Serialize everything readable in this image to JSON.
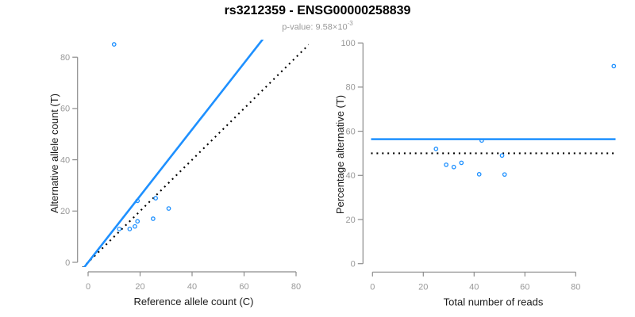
{
  "header": {
    "title": "rs3212359 - ENSG00000258839",
    "subtitle_prefix": "p-value: 9.58×10",
    "subtitle_exponent": "-3"
  },
  "colors": {
    "accent_blue": "#1E90FF",
    "reference_black": "#000000",
    "axis_gray": "#8c8c8c",
    "tick_label_gray": "#999999",
    "axis_label_black": "#1a1a1a"
  },
  "chart_data": [
    {
      "type": "scatter",
      "xlabel": "Reference allele count (C)",
      "ylabel": "Alternative allele count (T)",
      "xticks": [
        0,
        20,
        40,
        60,
        80
      ],
      "yticks": [
        0,
        20,
        40,
        60,
        80
      ],
      "xlim": [
        0,
        80
      ],
      "ylim": [
        0,
        80
      ],
      "points": [
        [
          10,
          85
        ],
        [
          12,
          13
        ],
        [
          16,
          13
        ],
        [
          18,
          14
        ],
        [
          19,
          16
        ],
        [
          19,
          24
        ],
        [
          25,
          17
        ],
        [
          26,
          25
        ],
        [
          31,
          21
        ]
      ],
      "fit_line": {
        "kind": "abline",
        "intercept": 0,
        "slope": 1.295,
        "color": "blue",
        "style": "solid"
      },
      "ref_line": {
        "kind": "abline",
        "intercept": 0,
        "slope": 1,
        "color": "black",
        "style": "dotted"
      }
    },
    {
      "type": "scatter",
      "xlabel": "Total number of reads",
      "ylabel": "Percentage alternative (T)",
      "xticks": [
        0,
        20,
        40,
        60,
        80
      ],
      "yticks": [
        0,
        20,
        40,
        60,
        80,
        100
      ],
      "xlim": [
        0,
        95
      ],
      "ylim": [
        0,
        100
      ],
      "points": [
        [
          25,
          52
        ],
        [
          29,
          44.8
        ],
        [
          32,
          43.8
        ],
        [
          35,
          45.7
        ],
        [
          42,
          40.5
        ],
        [
          43,
          55.8
        ],
        [
          51,
          49
        ],
        [
          52,
          40.4
        ],
        [
          95,
          89.5
        ]
      ],
      "fit_line": {
        "kind": "hline",
        "y": 56.4,
        "color": "blue",
        "style": "solid"
      },
      "ref_line": {
        "kind": "hline",
        "y": 50,
        "color": "black",
        "style": "dotted"
      }
    }
  ]
}
